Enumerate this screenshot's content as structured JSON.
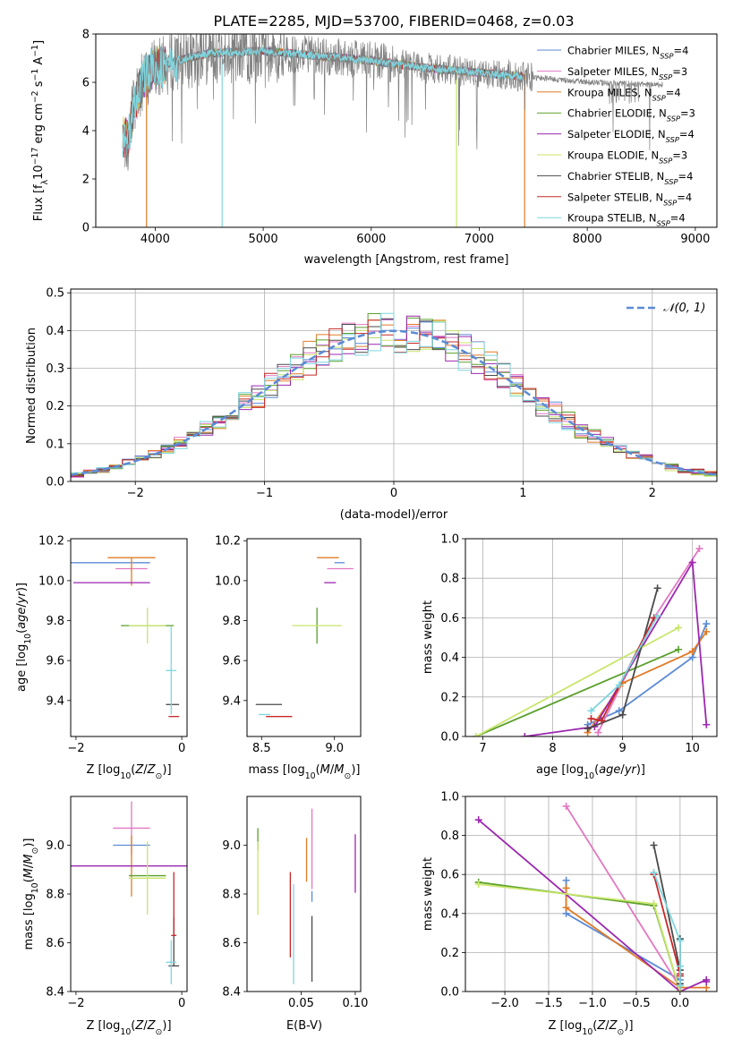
{
  "figure": {
    "title": "PLATE=2285, MJD=53700, FIBERID=0468, z=0.03"
  },
  "series": [
    {
      "name": "Chabrier MILES, N$_{SSP}$=4",
      "label": "Chabrier MILES, N",
      "sub": "SSP",
      "tail": "=4",
      "color": "#5b8bd6"
    },
    {
      "name": "Salpeter MILES, N$_{SSP}$=3",
      "label": "Salpeter MILES, N",
      "sub": "SSP",
      "tail": "=3",
      "color": "#e377c2"
    },
    {
      "name": "Kroupa MILES, N$_{SSP}$=4",
      "label": "Kroupa MILES, N",
      "sub": "SSP",
      "tail": "=4",
      "color": "#e07b27"
    },
    {
      "name": "Chabrier ELODIE, N$_{SSP}$=3",
      "label": "Chabrier ELODIE, N",
      "sub": "SSP",
      "tail": "=3",
      "color": "#5aa02c"
    },
    {
      "name": "Salpeter ELODIE, N$_{SSP}$=4",
      "label": "Salpeter ELODIE, N",
      "sub": "SSP",
      "tail": "=4",
      "color": "#9c27b0"
    },
    {
      "name": "Kroupa ELODIE, N$_{SSP}$=3",
      "label": "Kroupa ELODIE, N",
      "sub": "SSP",
      "tail": "=3",
      "color": "#c8e66a"
    },
    {
      "name": "Chabrier STELIB, N$_{SSP}$=4",
      "label": "Chabrier STELIB, N",
      "sub": "SSP",
      "tail": "=4",
      "color": "#4a4a4a"
    },
    {
      "name": "Salpeter STELIB, N$_{SSP}$=4",
      "label": "Salpeter STELIB, N",
      "sub": "SSP",
      "tail": "=4",
      "color": "#c62828"
    },
    {
      "name": "Kroupa STELIB, N$_{SSP}$=4",
      "label": "Kroupa STELIB, N",
      "sub": "SSP",
      "tail": "=4",
      "color": "#7fd6e0"
    }
  ],
  "chart_data": [
    {
      "id": "spectrum",
      "type": "line",
      "xlabel": "wavelength [Angstrom, rest frame]",
      "ylabel": "Flux [f$_\\lambda$10$^{-17}$ erg cm$^{-2}$ s$^{-1}$ A$^{-1}$]",
      "xlim": [
        3450,
        9200
      ],
      "ylim": [
        0,
        8
      ],
      "xticks": [
        4000,
        5000,
        6000,
        7000,
        8000,
        9000
      ],
      "yticks": [
        0,
        2,
        4,
        6,
        8
      ],
      "observed_color": "#808080",
      "model_range": [
        3700,
        7420
      ],
      "observed_range": [
        3720,
        8700
      ],
      "continuum": {
        "x": [
          3700,
          3750,
          3800,
          3900,
          4000,
          4200,
          4500,
          5000,
          5500,
          6000,
          6500,
          7000,
          7400,
          8000,
          8700
        ],
        "y": [
          3.9,
          3.6,
          5.0,
          6.2,
          6.6,
          6.9,
          7.2,
          7.3,
          7.1,
          6.9,
          6.6,
          6.4,
          6.25,
          6.0,
          5.9
        ]
      },
      "drops": [
        {
          "x": 3920,
          "series": "Kroupa MILES"
        },
        {
          "x": 4620,
          "series": "Kroupa STELIB"
        },
        {
          "x": 6790,
          "series": "Kroupa ELODIE"
        },
        {
          "x": 7420,
          "series": "Kroupa MILES"
        }
      ],
      "legend": "upper right"
    },
    {
      "id": "residuals",
      "type": "histogram",
      "xlabel": "(data-model)/error",
      "ylabel": "Normed distribution",
      "xlim": [
        -2.5,
        2.5
      ],
      "ylim": [
        0,
        0.51
      ],
      "xticks": [
        -2,
        -1,
        0,
        1,
        2
      ],
      "yticks": [
        0.0,
        0.1,
        0.2,
        0.3,
        0.4,
        0.5
      ],
      "bin_width": 0.1,
      "reference": {
        "name": "$\\mathcal{N}(0,1)$",
        "label": "𝒩(0, 1)",
        "mu": 0,
        "sigma": 1,
        "color": "#5b8bd6",
        "style": "dashed"
      },
      "grid": true,
      "legend": "upper right"
    },
    {
      "id": "age_vs_Z",
      "type": "errorbar",
      "xlabel": "Z [log$_{10}$(Z/Z$_\\odot$)]",
      "ylabel": "age  [log$_{10}$(age/yr)]",
      "xlim": [
        -2.1,
        0.1
      ],
      "ylim": [
        9.22,
        10.21
      ],
      "xticks": [
        -2,
        0
      ],
      "yticks": [
        9.4,
        9.6,
        9.8,
        10.0,
        10.2
      ],
      "points": [
        {
          "series": 0,
          "x": -0.95,
          "y": 10.09,
          "xlo": 1.2,
          "xhi": 0.35,
          "ylo": 0.0,
          "yhi": 0.0
        },
        {
          "series": 1,
          "x": -0.95,
          "y": 10.06,
          "xlo": 0.3,
          "xhi": 0.3,
          "ylo": 0.0,
          "yhi": 0.0
        },
        {
          "series": 2,
          "x": -0.95,
          "y": 10.115,
          "xlo": 0.45,
          "xhi": 0.45,
          "ylo": 0.14,
          "yhi": 0.0
        },
        {
          "series": 3,
          "x": -0.65,
          "y": 9.775,
          "xlo": 0.5,
          "xhi": 0.5,
          "ylo": 0.0,
          "yhi": 0.0
        },
        {
          "series": 4,
          "x": -0.95,
          "y": 9.99,
          "xlo": 1.1,
          "xhi": 0.35,
          "ylo": 0.0,
          "yhi": 0.0
        },
        {
          "series": 5,
          "x": -0.65,
          "y": 9.775,
          "xlo": 0.35,
          "xhi": 0.35,
          "ylo": 0.09,
          "yhi": 0.09
        },
        {
          "series": 6,
          "x": -0.15,
          "y": 9.38,
          "xlo": 0.15,
          "xhi": 0.1,
          "ylo": 0.0,
          "yhi": 0.0
        },
        {
          "series": 7,
          "x": -0.15,
          "y": 9.32,
          "xlo": 0.1,
          "xhi": 0.1,
          "ylo": 0.0,
          "yhi": 0.0
        },
        {
          "series": 8,
          "x": -0.2,
          "y": 9.55,
          "xlo": 0.1,
          "xhi": 0.1,
          "ylo": 0.22,
          "yhi": 0.22
        }
      ]
    },
    {
      "id": "age_vs_mass",
      "type": "errorbar",
      "xlabel": "mass [log$_{10}$(M/M$_\\odot$)]",
      "ylabel": "",
      "xlim": [
        8.4,
        9.18
      ],
      "ylim": [
        9.22,
        10.21
      ],
      "xticks": [
        8.5,
        9.0
      ],
      "yticks": [
        9.4,
        9.6,
        9.8,
        10.0,
        10.2
      ],
      "points": [
        {
          "series": 0,
          "x": 9.0,
          "y": 10.09,
          "xlo": 0.0,
          "xhi": 0.07,
          "ylo": 0.0,
          "yhi": 0.0
        },
        {
          "series": 1,
          "x": 9.05,
          "y": 10.06,
          "xlo": 0.1,
          "xhi": 0.08,
          "ylo": 0.0,
          "yhi": 0.0
        },
        {
          "series": 2,
          "x": 9.0,
          "y": 10.115,
          "xlo": 0.12,
          "xhi": 0.03,
          "ylo": 0.0,
          "yhi": 0.0
        },
        {
          "series": 3,
          "x": 8.88,
          "y": 9.775,
          "xlo": 0.0,
          "xhi": 0.0,
          "ylo": 0.09,
          "yhi": 0.09
        },
        {
          "series": 4,
          "x": 8.97,
          "y": 9.99,
          "xlo": 0.04,
          "xhi": 0.04,
          "ylo": 0.0,
          "yhi": 0.0
        },
        {
          "series": 5,
          "x": 8.88,
          "y": 9.775,
          "xlo": 0.17,
          "xhi": 0.17,
          "ylo": 0.0,
          "yhi": 0.0
        },
        {
          "series": 6,
          "x": 8.53,
          "y": 9.38,
          "xlo": 0.07,
          "xhi": 0.11,
          "ylo": 0.0,
          "yhi": 0.0
        },
        {
          "series": 7,
          "x": 8.62,
          "y": 9.32,
          "xlo": 0.09,
          "xhi": 0.09,
          "ylo": 0.0,
          "yhi": 0.0
        },
        {
          "series": 8,
          "x": 8.52,
          "y": 9.33,
          "xlo": 0.04,
          "xhi": 0.04,
          "ylo": 0.0,
          "yhi": 0.0
        }
      ]
    },
    {
      "id": "mass_weight_vs_age",
      "type": "line",
      "xlabel": "age  [log$_{10}$(age/yr)]",
      "ylabel": "mass weight",
      "xlim": [
        6.75,
        10.35
      ],
      "ylim": [
        0,
        1
      ],
      "xticks": [
        7,
        8,
        9,
        10
      ],
      "yticks": [
        0.0,
        0.2,
        0.4,
        0.6,
        0.8,
        1.0
      ],
      "grid": true,
      "series_points": [
        {
          "series": 0,
          "x": [
            8.5,
            8.95,
            10.0,
            10.2
          ],
          "y": [
            0.06,
            0.13,
            0.4,
            0.57
          ]
        },
        {
          "series": 1,
          "x": [
            8.65,
            9.45,
            10.1
          ],
          "y": [
            0.02,
            0.6,
            0.95
          ]
        },
        {
          "series": 2,
          "x": [
            8.5,
            9.0,
            10.0,
            10.2
          ],
          "y": [
            0.02,
            0.27,
            0.43,
            0.53
          ]
        },
        {
          "series": 3,
          "x": [
            6.9,
            9.8
          ],
          "y": [
            0.0,
            0.44
          ]
        },
        {
          "series": 4,
          "x": [
            7.6,
            8.6,
            10.0,
            10.2
          ],
          "y": [
            0.0,
            0.05,
            0.88,
            0.06
          ]
        },
        {
          "series": 5,
          "x": [
            6.9,
            9.8
          ],
          "y": [
            0.0,
            0.55
          ]
        },
        {
          "series": 6,
          "x": [
            8.5,
            9.0,
            9.5
          ],
          "y": [
            0.04,
            0.11,
            0.75
          ]
        },
        {
          "series": 7,
          "x": [
            8.55,
            8.7,
            9.45
          ],
          "y": [
            0.09,
            0.08,
            0.6
          ]
        },
        {
          "series": 8,
          "x": [
            8.55,
            8.95,
            9.5
          ],
          "y": [
            0.13,
            0.26,
            0.61
          ]
        }
      ]
    },
    {
      "id": "mass_vs_Z",
      "type": "errorbar",
      "xlabel": "Z [log$_{10}$(Z/Z$_\\odot$)]",
      "ylabel": "mass [log$_{10}$(M/M$_\\odot$)]",
      "xlim": [
        -2.1,
        0.1
      ],
      "ylim": [
        8.4,
        9.2
      ],
      "xticks": [
        -2,
        0
      ],
      "yticks": [
        8.4,
        8.6,
        8.8,
        9.0
      ],
      "points": [
        {
          "series": 0,
          "x": -0.95,
          "y": 9.0,
          "xlo": 0.35,
          "xhi": 0.35,
          "ylo": 0.0,
          "yhi": 0.0
        },
        {
          "series": 1,
          "x": -0.95,
          "y": 9.07,
          "xlo": 0.35,
          "xhi": 0.35,
          "ylo": 0.11,
          "yhi": 0.11
        },
        {
          "series": 2,
          "x": -0.95,
          "y": 8.94,
          "xlo": 0.0,
          "xhi": 0.0,
          "ylo": 0.15,
          "yhi": 0.1
        },
        {
          "series": 3,
          "x": -0.65,
          "y": 8.875,
          "xlo": 0.35,
          "xhi": 0.35,
          "ylo": 0.0,
          "yhi": 0.0
        },
        {
          "series": 4,
          "x": -0.65,
          "y": 8.915,
          "xlo": 1.45,
          "xhi": 0.8,
          "ylo": 0.0,
          "yhi": 0.0
        },
        {
          "series": 5,
          "x": -0.65,
          "y": 8.865,
          "xlo": 0.35,
          "xhi": 0.35,
          "ylo": 0.15,
          "yhi": 0.15
        },
        {
          "series": 6,
          "x": -0.15,
          "y": 8.505,
          "xlo": 0.1,
          "xhi": 0.1,
          "ylo": 0.0,
          "yhi": 0.2
        },
        {
          "series": 7,
          "x": -0.15,
          "y": 8.63,
          "xlo": 0.05,
          "xhi": 0.05,
          "ylo": 0.0,
          "yhi": 0.26
        },
        {
          "series": 8,
          "x": -0.2,
          "y": 8.52,
          "xlo": 0.1,
          "xhi": 0.1,
          "ylo": 0.09,
          "yhi": 0.09
        }
      ]
    },
    {
      "id": "mass_vs_EBV",
      "type": "errorbar",
      "xlabel": "E(B-V)",
      "ylabel": "",
      "xlim": [
        0.0,
        0.105
      ],
      "ylim": [
        8.4,
        9.2
      ],
      "xticks": [
        0.05,
        0.1
      ],
      "yticks": [
        8.4,
        8.6,
        8.8,
        9.0
      ],
      "points": [
        {
          "series": 0,
          "x": 0.06,
          "y": 8.79,
          "xlo": 0.0,
          "xhi": 0.0,
          "ylo": 0.0,
          "yhi": 0.0
        },
        {
          "series": 1,
          "x": 0.06,
          "y": 9.0,
          "xlo": 0.0,
          "xhi": 0.0,
          "ylo": 0.18,
          "yhi": 0.15
        },
        {
          "series": 2,
          "x": 0.055,
          "y": 8.94,
          "xlo": 0.0,
          "xhi": 0.0,
          "ylo": 0.09,
          "yhi": 0.09
        },
        {
          "series": 3,
          "x": 0.01,
          "y": 8.98,
          "xlo": 0.0,
          "xhi": 0.0,
          "ylo": 0.0,
          "yhi": 0.09
        },
        {
          "series": 4,
          "x": 0.1,
          "y": 8.925,
          "xlo": 0.0,
          "xhi": 0.0,
          "ylo": 0.12,
          "yhi": 0.12
        },
        {
          "series": 5,
          "x": 0.01,
          "y": 8.865,
          "xlo": 0.0,
          "xhi": 0.0,
          "ylo": 0.15,
          "yhi": 0.15
        },
        {
          "series": 6,
          "x": 0.06,
          "y": 8.58,
          "xlo": 0.0,
          "xhi": 0.0,
          "ylo": 0.14,
          "yhi": 0.13
        },
        {
          "series": 7,
          "x": 0.04,
          "y": 8.72,
          "xlo": 0.0,
          "xhi": 0.0,
          "ylo": 0.18,
          "yhi": 0.17
        },
        {
          "series": 8,
          "x": 0.043,
          "y": 8.64,
          "xlo": 0.0,
          "xhi": 0.0,
          "ylo": 0.21,
          "yhi": 0.2
        }
      ]
    },
    {
      "id": "mass_weight_vs_Z",
      "type": "line",
      "xlabel": "Z [log$_{10}$(Z/Z$_\\odot$)]",
      "ylabel": "mass weight",
      "xlim": [
        -2.45,
        0.42
      ],
      "ylim": [
        0,
        1
      ],
      "xticks": [
        -2.0,
        -1.5,
        -1.0,
        -0.5,
        0.0
      ],
      "yticks": [
        0.0,
        0.2,
        0.4,
        0.6,
        0.8,
        1.0
      ],
      "grid": true,
      "series_points": [
        {
          "series": 0,
          "x": [
            -1.3,
            -1.3,
            0.0,
            0.0
          ],
          "y": [
            0.57,
            0.4,
            0.06,
            0.13
          ]
        },
        {
          "series": 1,
          "x": [
            -1.3,
            0.0,
            0.0
          ],
          "y": [
            0.95,
            0.02,
            0.0
          ]
        },
        {
          "series": 2,
          "x": [
            -1.3,
            -1.3,
            0.0,
            0.3
          ],
          "y": [
            0.53,
            0.43,
            0.02,
            0.02
          ]
        },
        {
          "series": 3,
          "x": [
            -2.3,
            -0.3,
            0.0
          ],
          "y": [
            0.56,
            0.44,
            0.0
          ]
        },
        {
          "series": 4,
          "x": [
            -2.3,
            0.0,
            0.3,
            0.3
          ],
          "y": [
            0.88,
            0.0,
            0.06,
            0.05
          ]
        },
        {
          "series": 5,
          "x": [
            -2.3,
            -0.3,
            0.0
          ],
          "y": [
            0.55,
            0.45,
            0.0
          ]
        },
        {
          "series": 6,
          "x": [
            -0.3,
            0.0,
            0.0,
            0.0
          ],
          "y": [
            0.75,
            0.11,
            0.27,
            0.04
          ]
        },
        {
          "series": 7,
          "x": [
            -0.3,
            0.0,
            0.0
          ],
          "y": [
            0.6,
            0.09,
            0.08
          ]
        },
        {
          "series": 8,
          "x": [
            -0.3,
            0.0,
            0.0,
            0.0
          ],
          "y": [
            0.61,
            0.26,
            0.13,
            0.03
          ]
        }
      ]
    }
  ]
}
